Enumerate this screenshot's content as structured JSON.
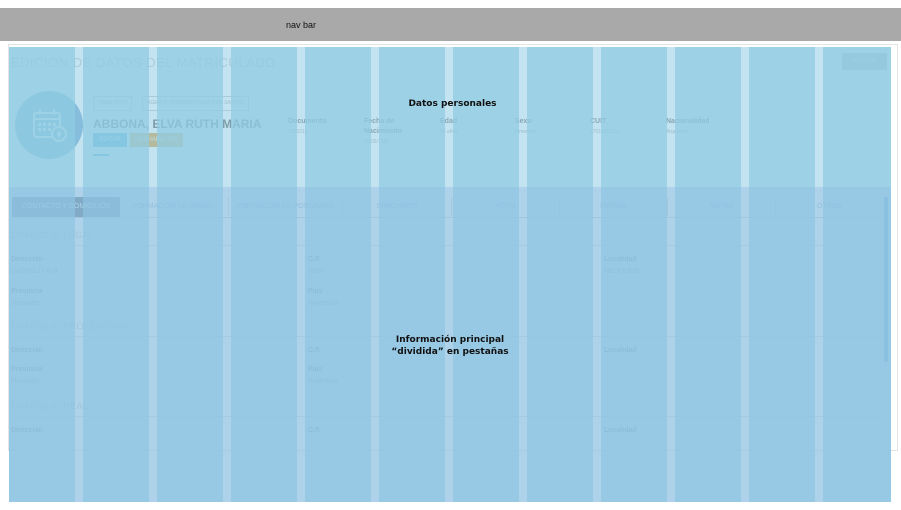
{
  "navbar": {
    "label": "nav bar"
  },
  "header": {
    "title": "EDICIÓN DE DATOS DEL MATRICULADO",
    "top_button": "VOLVER"
  },
  "profile": {
    "tags": [
      "HABILITADO",
      "AGENTE: FORMANDO AGUSTIN SASTRE"
    ],
    "name": "ABBONA, ELVA RUTH MARIA",
    "edit_button": "EDITAR",
    "disable_button": "DESHABILITAR",
    "fields": [
      {
        "label": "Documento",
        "value": "1395215"
      },
      {
        "label": "Fecha de Nacimiento",
        "value": "20/05/1965"
      },
      {
        "label": "Edad",
        "value": "56 años"
      },
      {
        "label": "Sexo",
        "value": "femenino"
      },
      {
        "label": "CUIT",
        "value": "27013952151"
      },
      {
        "label": "Nacionalidad",
        "value": "Argentina"
      }
    ]
  },
  "tabs": [
    {
      "label": "CONTACTO Y DOMICILIOS",
      "active": true
    },
    {
      "label": "FORMACIÓN DE GRADO"
    },
    {
      "label": "FORMACIÓN DE POSGRADO"
    },
    {
      "label": "SANCIONES"
    },
    {
      "label": "FOTO"
    },
    {
      "label": "FIRMAS"
    },
    {
      "label": "NOTAS"
    },
    {
      "label": "OTROS"
    }
  ],
  "sections": [
    {
      "title": "DOMICILIO LEGAL",
      "rows": [
        [
          {
            "label": "Dirección",
            "value": "CASTELLI 424"
          },
          {
            "label": "C.P.",
            "value": "8300"
          },
          {
            "label": "Localidad",
            "value": "NEUQUEN"
          }
        ],
        [
          {
            "label": "Provincia",
            "value": "Neuquén"
          },
          {
            "label": "País",
            "value": "Argentina"
          }
        ]
      ]
    },
    {
      "title": "DOMICILIO PROFESIONAL",
      "rows": [
        [
          {
            "label": "Dirección",
            "value": ""
          },
          {
            "label": "C.P.",
            "value": ""
          },
          {
            "label": "Localidad",
            "value": ""
          }
        ],
        [
          {
            "label": "Provincia",
            "value": "Neuquén"
          },
          {
            "label": "País",
            "value": "Argentina"
          }
        ]
      ]
    },
    {
      "title": "DOMICILIO REAL",
      "rows": [
        [
          {
            "label": "Dirección",
            "value": ""
          },
          {
            "label": "C.P.",
            "value": ""
          },
          {
            "label": "Localidad",
            "value": ""
          }
        ]
      ]
    }
  ],
  "annotations": {
    "personal": "Datos personales",
    "tabs_line1": "Información principal",
    "tabs_line2": "“dividida” en pestañas"
  },
  "colors": {
    "navbar": "#a9a9a9",
    "overlay_column": "#8fcce2",
    "accent_blue": "#3f9fd6",
    "accent_orange": "#e0a44a",
    "active_tab": "#5a6b78"
  }
}
